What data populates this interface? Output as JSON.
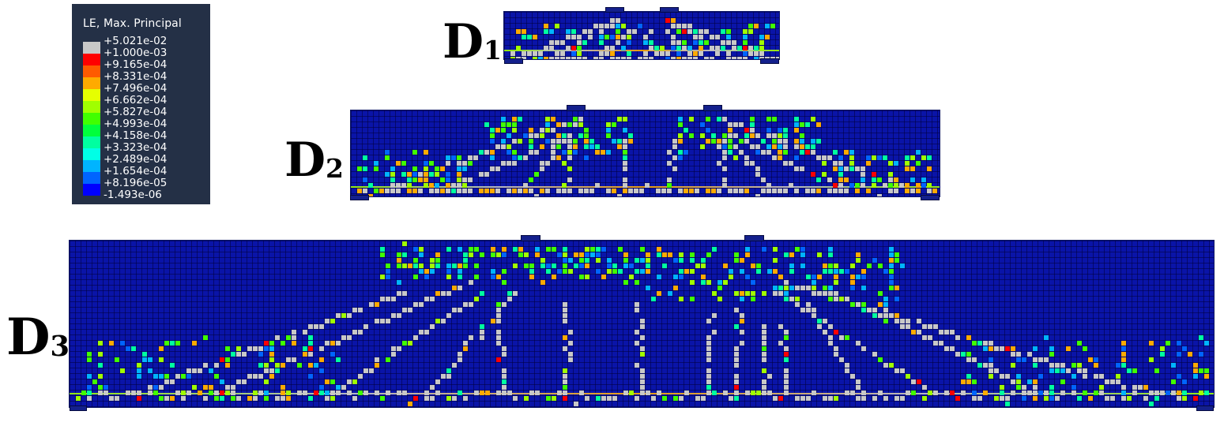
{
  "legend": {
    "title": "LE, Max. Principal",
    "entries": [
      {
        "label": "+5.021e-02",
        "color": "#c8c8c8"
      },
      {
        "label": "+1.000e-03",
        "color": "#ff0000"
      },
      {
        "label": "+9.165e-04",
        "color": "#ff5a00"
      },
      {
        "label": "+8.331e-04",
        "color": "#ffaa00"
      },
      {
        "label": "+7.496e-04",
        "color": "#e6ff00"
      },
      {
        "label": "+6.662e-04",
        "color": "#a0ff00"
      },
      {
        "label": "+5.827e-04",
        "color": "#40ff00"
      },
      {
        "label": "+4.993e-04",
        "color": "#00ff3c"
      },
      {
        "label": "+4.158e-04",
        "color": "#00ffa0"
      },
      {
        "label": "+3.323e-04",
        "color": "#00ffe6"
      },
      {
        "label": "+2.489e-04",
        "color": "#00b4ff"
      },
      {
        "label": "+1.654e-04",
        "color": "#0064ff"
      },
      {
        "label": "+8.196e-05",
        "color": "#0000ff"
      },
      {
        "label": "-1.493e-06",
        "color": null
      }
    ]
  },
  "beams": [
    {
      "id": "d1",
      "letter": "D",
      "subscript": "1"
    },
    {
      "id": "d2",
      "letter": "D",
      "subscript": "2"
    },
    {
      "id": "d3",
      "letter": "D",
      "subscript": "3"
    }
  ]
}
